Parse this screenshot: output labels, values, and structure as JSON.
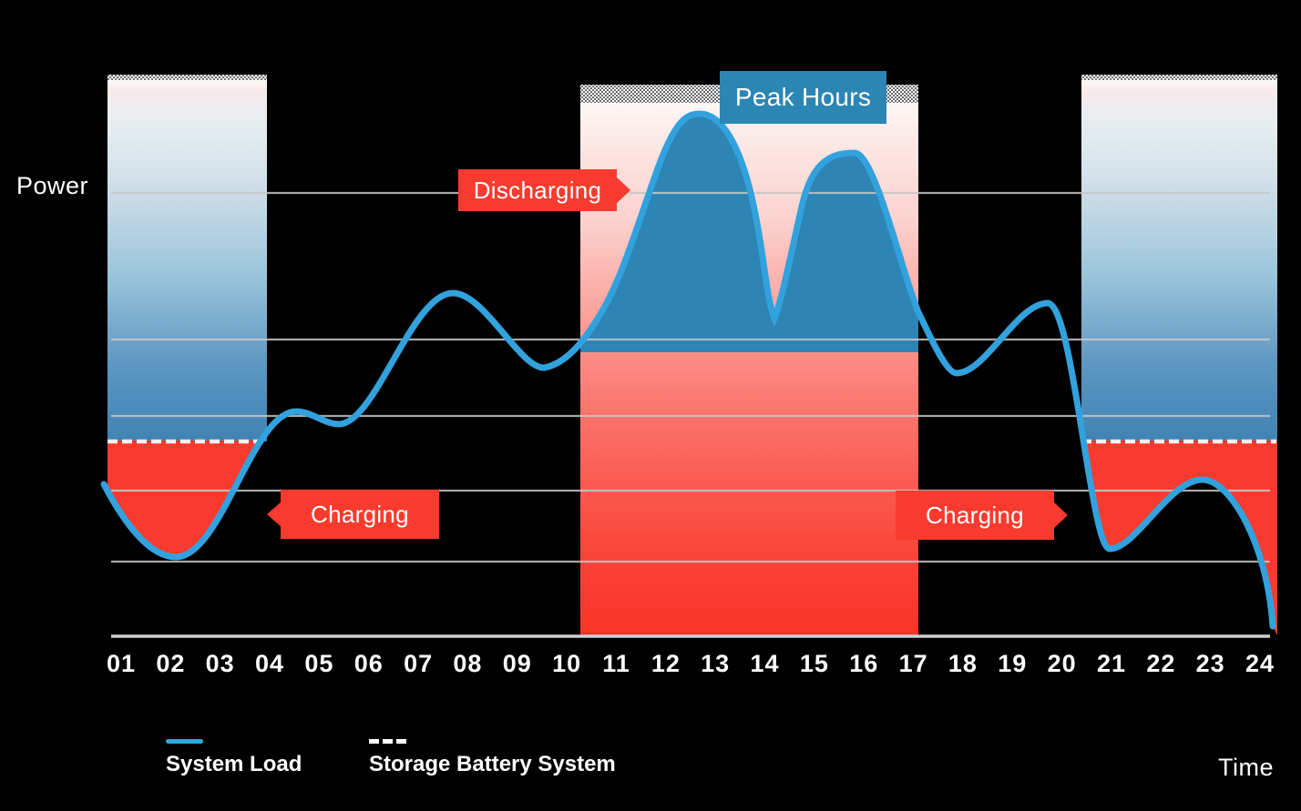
{
  "labels": {
    "power": "Power",
    "time": "Time"
  },
  "annotations": {
    "discharging": "Discharging",
    "charging_left": "Charging",
    "charging_right": "Charging",
    "peak_hours": "Peak Hours"
  },
  "legend": [
    {
      "name": "system-load",
      "label": "System Load",
      "swatch": "solid-line",
      "color": "#35a3df"
    },
    {
      "name": "storage-battery-system",
      "label": "Storage Battery System",
      "swatch": "dashed-line",
      "color": "#ffffff"
    }
  ],
  "axis": {
    "hours": [
      "01",
      "02",
      "03",
      "04",
      "05",
      "06",
      "07",
      "08",
      "09",
      "10",
      "11",
      "12",
      "13",
      "14",
      "15",
      "16",
      "17",
      "18",
      "19",
      "20",
      "21",
      "22",
      "23",
      "24"
    ]
  },
  "colors": {
    "background": "#000000",
    "curve": "#31a2dd",
    "discharge_fill": "#2e84b3",
    "peak_tag": "#2b86b4",
    "charge_red": "#f83b2e",
    "gridline": "#c6c6c6",
    "axis_line": "#cdd1d4",
    "dashed_battery_line": "#f2f2f2"
  },
  "chart_data": {
    "type": "line",
    "xlabel": "Time",
    "ylabel": "Power",
    "x_hours": [
      1,
      2,
      3,
      4,
      5,
      6,
      7,
      8,
      9,
      10,
      11,
      12,
      13,
      14,
      15,
      16,
      17,
      18,
      19,
      20,
      21,
      22,
      23,
      24
    ],
    "series": [
      {
        "name": "System Load",
        "style": "solid",
        "color": "#31a2dd",
        "values": [
          1.6,
          1.1,
          1.6,
          2.8,
          2.9,
          3.2,
          4.2,
          4.6,
          3.8,
          3.7,
          4.5,
          6.3,
          7.1,
          4.5,
          5.6,
          6.5,
          4.4,
          3.6,
          4.2,
          4.5,
          1.2,
          1.7,
          2.1,
          0.7
        ]
      },
      {
        "name": "Storage Battery System",
        "style": "dashed",
        "color": "#ffffff",
        "level": 2.6,
        "segments_hours": [
          [
            1,
            4
          ],
          [
            20.5,
            24.3
          ]
        ]
      }
    ],
    "regions": [
      {
        "label": "Charging",
        "type": "charging",
        "hours": [
          1,
          4
        ]
      },
      {
        "label": "Discharging",
        "type": "discharging",
        "hours": [
          10.3,
          17
        ]
      },
      {
        "label": "Peak Hours",
        "type": "peak",
        "hours": [
          10.3,
          17
        ]
      },
      {
        "label": "Charging",
        "type": "charging",
        "hours": [
          20.5,
          24.3
        ]
      }
    ],
    "discharge_baseline_level": 3.8,
    "ylim": [
      0,
      7.6
    ],
    "grid": "horizontal",
    "legend_position": "bottom-left"
  }
}
